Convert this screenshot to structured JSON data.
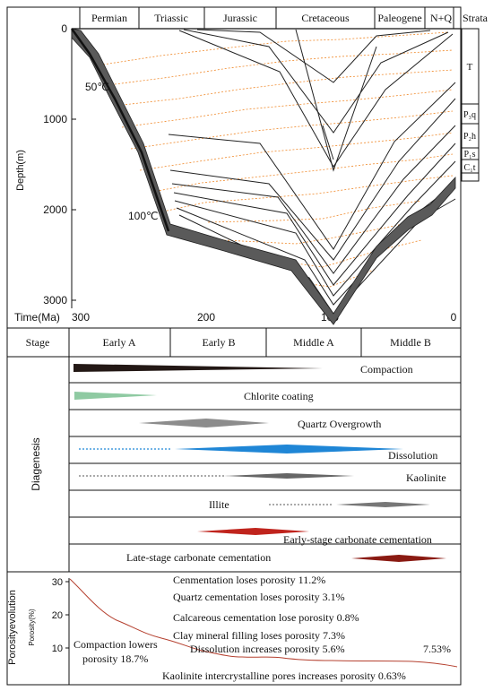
{
  "periods": [
    "Permian",
    "Triassic",
    "Jurassic",
    "Cretaceous",
    "Paleogene",
    "N+Q"
  ],
  "strata_header": "Strata",
  "strata": [
    "T",
    "P₃q",
    "P₂h",
    "P₁s",
    "C₁t",
    ""
  ],
  "depth_axis_label": "Depth(m)",
  "depth_ticks": [
    "0",
    "1000",
    "2000",
    "3000"
  ],
  "time_axis_label": "Time(Ma)",
  "time_ticks": [
    "300",
    "200",
    "100",
    "0"
  ],
  "temp_labels": [
    "50℃",
    "100℃"
  ],
  "stage_header": "Stage",
  "stages": [
    "Early A",
    "Early B",
    "Middle A",
    "Middle B"
  ],
  "diagenesis_label": "Diagenesis",
  "diagenesis_rows": [
    {
      "label": "Compaction",
      "color": "#231815"
    },
    {
      "label": "Chlorite coating",
      "color": "#8fcaa2"
    },
    {
      "label": "Quartz Overgrowth",
      "color": "#8c8c8c"
    },
    {
      "label": "Dissolution",
      "color": "#1f86d6"
    },
    {
      "label": "Kaolinite",
      "color": "#666666"
    },
    {
      "label": "Illite",
      "color": "#777777"
    },
    {
      "label": "Early-stage carbonate cementation",
      "color": "#c0241d"
    },
    {
      "label": "Late-stage carbonate cementation",
      "color": "#8a1a12"
    }
  ],
  "porosity_label": "Porosityevolution",
  "porosity_axis_label": "Porosity(%)",
  "porosity_ticks": [
    "30",
    "20",
    "10"
  ],
  "porosity_annotations": [
    "Cenmentation loses porosity 11.2%",
    "Quartz cementation loses porosity 3.1%",
    "Calcareous cementation lose porosity 0.8%",
    "Clay mineral filling loses porosity 7.3%",
    "Dissolution increases porosity 5.6%",
    "Compaction lowers",
    "porosity 18.7%",
    "7.53%",
    "Kaolinite intercrystalline pores increases porosity 0.63%"
  ],
  "colors": {
    "burial": "#222222",
    "isotherm": "#f08a2c",
    "porosity_curve": "#b5402f"
  }
}
